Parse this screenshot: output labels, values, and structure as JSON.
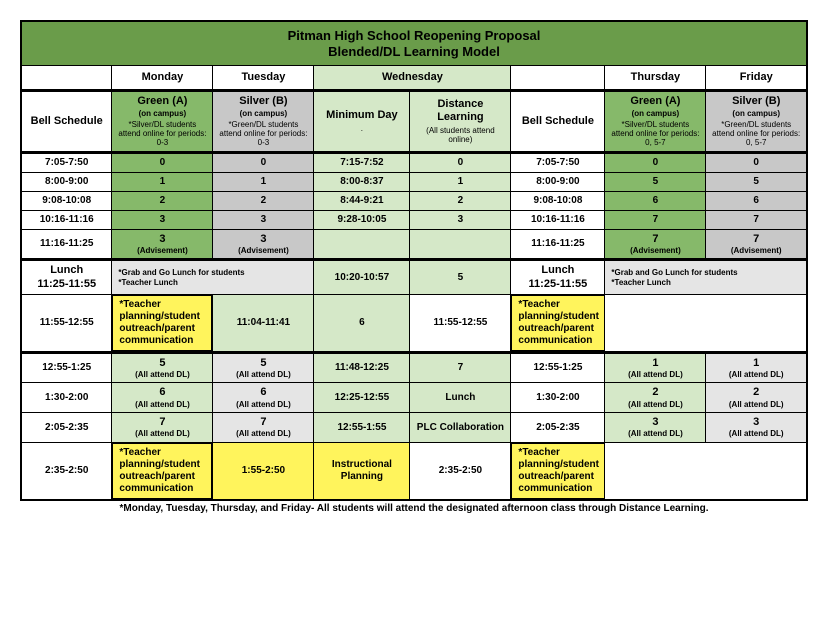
{
  "colors": {
    "green_dark": "#6a9c4a",
    "green_mid": "#86b96a",
    "green_light": "#d5e8c8",
    "silver": "#c8c8c8",
    "silver_light": "#e5e5e5",
    "yellow": "#fff45c",
    "white": "#ffffff"
  },
  "title_lines": [
    "Pitman High School Reopening Proposal",
    "Blended/DL Learning Model"
  ],
  "days": [
    "Monday",
    "Tuesday",
    "Wednesday",
    "Thursday",
    "Friday"
  ],
  "header": {
    "bell": "Bell Schedule",
    "green_a": "Green (A)",
    "on_campus": "(on campus)",
    "silver_b": "Silver (B)",
    "min_day": "Minimum Day",
    "dl": "Distance Learning",
    "dl_sub": "(All students attend online)",
    "note_silver": "*Silver/DL students attend online for periods:",
    "note_green": "*Green/DL students attend online for periods:",
    "periods03": "0-3",
    "periods057": "0, 5-7"
  },
  "leftBell": [
    "7:05-7:50",
    "8:00-9:00",
    "9:08-10:08",
    "10:16-11:16",
    "11:16-11:25"
  ],
  "leftPeriods": [
    "0",
    "1",
    "2",
    "3"
  ],
  "leftAdv": "3",
  "leftAdvLabel": "(Advisement)",
  "wedTimes": [
    "7:15-7:52",
    "8:00-8:37",
    "8:44-9:21",
    "9:28-10:05"
  ],
  "wedPeriods": [
    "0",
    "1",
    "2",
    "3"
  ],
  "rightBell": [
    "7:05-7:50",
    "8:00-9:00",
    "9:08-10:08",
    "10:16-11:16",
    "11:16-11:25"
  ],
  "rightPeriods": [
    "0",
    "5",
    "6",
    "7"
  ],
  "rightAdv": "7",
  "lunch": {
    "label": "Lunch",
    "time": "11:25-11:55",
    "grab": "*Grab and Go Lunch for students",
    "tlunch": "*Teacher Lunch",
    "wed_time": "10:20-10:57",
    "wed_period": "5"
  },
  "planning1": {
    "time": "11:55-12:55",
    "text": "*Teacher planning/student outreach/parent communication",
    "wed_time": "11:04-11:41",
    "wed_period": "6"
  },
  "afternoon": [
    {
      "bell": "12:55-1:25",
      "lp": "5",
      "lpsub": "(All attend DL)",
      "wt": "11:48-12:25",
      "wp": "7",
      "rp": "1"
    },
    {
      "bell": "1:30-2:00",
      "lp": "6",
      "lpsub": "(All attend DL)",
      "wt": "12:25-12:55",
      "wp": "Lunch",
      "rp": "2"
    },
    {
      "bell": "2:05-2:35",
      "lp": "7",
      "lpsub": "(All attend DL)",
      "wt": "12:55-1:55",
      "wp": "PLC Collaboration",
      "rp": "3"
    }
  ],
  "planning2": {
    "time": "2:35-2:50",
    "wed_time": "1:55-2:50",
    "wed_label": "Instructional Planning"
  },
  "footnote": "*Monday, Tuesday, Thursday, and Friday- All students will attend the designated afternoon class through Distance Learning."
}
